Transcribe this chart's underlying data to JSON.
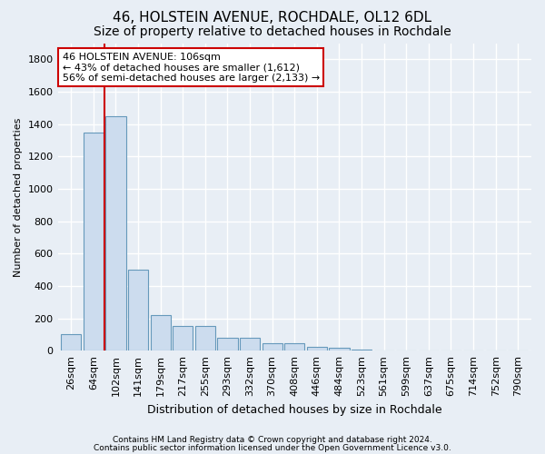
{
  "title1": "46, HOLSTEIN AVENUE, ROCHDALE, OL12 6DL",
  "title2": "Size of property relative to detached houses in Rochdale",
  "xlabel": "Distribution of detached houses by size in Rochdale",
  "ylabel": "Number of detached properties",
  "categories": [
    "26sqm",
    "64sqm",
    "102sqm",
    "141sqm",
    "179sqm",
    "217sqm",
    "255sqm",
    "293sqm",
    "332sqm",
    "370sqm",
    "408sqm",
    "446sqm",
    "484sqm",
    "523sqm",
    "561sqm",
    "599sqm",
    "637sqm",
    "675sqm",
    "714sqm",
    "752sqm",
    "790sqm"
  ],
  "bar_heights": [
    100,
    1350,
    1450,
    500,
    220,
    155,
    155,
    80,
    80,
    45,
    45,
    22,
    18,
    5,
    2,
    1,
    0,
    0,
    0,
    0,
    0
  ],
  "bar_color": "#ccdcee",
  "bar_edge_color": "#6699bb",
  "red_line_color": "#cc0000",
  "annotation_title": "46 HOLSTEIN AVENUE: 106sqm",
  "annotation_line1": "← 43% of detached houses are smaller (1,612)",
  "annotation_line2": "56% of semi-detached houses are larger (2,133) →",
  "annotation_box_facecolor": "#ffffff",
  "annotation_box_edgecolor": "#cc0000",
  "ylim": [
    0,
    1900
  ],
  "yticks": [
    0,
    200,
    400,
    600,
    800,
    1000,
    1200,
    1400,
    1600,
    1800
  ],
  "footer1": "Contains HM Land Registry data © Crown copyright and database right 2024.",
  "footer2": "Contains public sector information licensed under the Open Government Licence v3.0.",
  "bg_color": "#e8eef5",
  "plot_bg_color": "#e8eef5",
  "grid_color": "#ffffff",
  "title1_fontsize": 11,
  "title2_fontsize": 10,
  "xlabel_fontsize": 9,
  "ylabel_fontsize": 8,
  "tick_fontsize": 8,
  "annotation_fontsize": 8,
  "footer_fontsize": 6.5
}
